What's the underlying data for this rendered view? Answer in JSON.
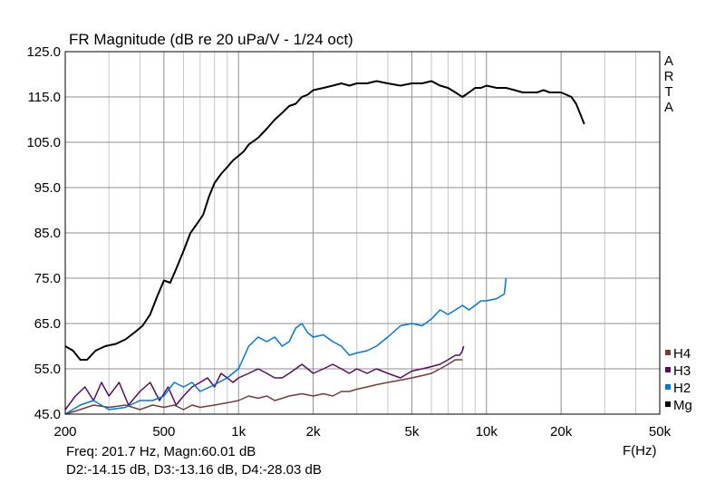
{
  "chart_data": {
    "type": "line",
    "title": "FR Magnitude (dB re 20 uPa/V - 1/24 oct)",
    "xlabel": "F(Hz)",
    "ylabel": "",
    "x_scale": "log",
    "xlim": [
      200,
      50000
    ],
    "ylim": [
      45,
      125
    ],
    "grid": true,
    "brand": "ARTA",
    "brand_letters": [
      "A",
      "R",
      "T",
      "A"
    ],
    "x_ticks": [
      {
        "value": 200,
        "label": "200"
      },
      {
        "value": 500,
        "label": "500"
      },
      {
        "value": 1000,
        "label": "1k"
      },
      {
        "value": 2000,
        "label": "2k"
      },
      {
        "value": 5000,
        "label": "5k"
      },
      {
        "value": 10000,
        "label": "10k"
      },
      {
        "value": 20000,
        "label": "20k"
      },
      {
        "value": 50000,
        "label": "50k"
      }
    ],
    "y_ticks": [
      {
        "value": 125,
        "label": "125.0"
      },
      {
        "value": 115,
        "label": "115.0"
      },
      {
        "value": 105,
        "label": "105.0"
      },
      {
        "value": 95,
        "label": "95.0"
      },
      {
        "value": 85,
        "label": "85.0"
      },
      {
        "value": 75,
        "label": "75.0"
      },
      {
        "value": 65,
        "label": "65.0"
      },
      {
        "value": 55,
        "label": "55.0"
      },
      {
        "value": 45,
        "label": "45.0"
      }
    ],
    "legend_position": "bottom-right",
    "series": [
      {
        "name": "Mg",
        "color": "#000000",
        "points": [
          [
            200,
            60
          ],
          [
            215,
            59
          ],
          [
            230,
            57
          ],
          [
            245,
            57
          ],
          [
            265,
            59
          ],
          [
            290,
            60
          ],
          [
            320,
            60.5
          ],
          [
            350,
            61.5
          ],
          [
            380,
            63
          ],
          [
            410,
            64.5
          ],
          [
            440,
            67
          ],
          [
            470,
            71
          ],
          [
            500,
            74.5
          ],
          [
            530,
            74
          ],
          [
            560,
            77
          ],
          [
            600,
            81
          ],
          [
            640,
            85
          ],
          [
            680,
            87
          ],
          [
            720,
            89
          ],
          [
            760,
            93
          ],
          [
            800,
            96
          ],
          [
            850,
            98
          ],
          [
            900,
            99.5
          ],
          [
            950,
            101
          ],
          [
            1000,
            102
          ],
          [
            1050,
            103
          ],
          [
            1100,
            104.5
          ],
          [
            1200,
            106
          ],
          [
            1300,
            108
          ],
          [
            1400,
            110
          ],
          [
            1500,
            111.5
          ],
          [
            1600,
            113
          ],
          [
            1700,
            113.5
          ],
          [
            1800,
            115
          ],
          [
            1900,
            115.5
          ],
          [
            2000,
            116.5
          ],
          [
            2200,
            117
          ],
          [
            2400,
            117.5
          ],
          [
            2600,
            118
          ],
          [
            2800,
            117.5
          ],
          [
            3000,
            118
          ],
          [
            3300,
            118
          ],
          [
            3600,
            118.5
          ],
          [
            4000,
            118
          ],
          [
            4500,
            117.5
          ],
          [
            5000,
            118
          ],
          [
            5500,
            118
          ],
          [
            6000,
            118.5
          ],
          [
            6500,
            117.5
          ],
          [
            7000,
            117
          ],
          [
            7500,
            116
          ],
          [
            8000,
            115
          ],
          [
            8500,
            116
          ],
          [
            9000,
            117
          ],
          [
            9500,
            117
          ],
          [
            10000,
            117.5
          ],
          [
            11000,
            117
          ],
          [
            12000,
            117
          ],
          [
            13000,
            116.5
          ],
          [
            14000,
            116
          ],
          [
            15000,
            116
          ],
          [
            16000,
            116
          ],
          [
            17000,
            116.5
          ],
          [
            18000,
            116
          ],
          [
            19000,
            116
          ],
          [
            20000,
            116
          ],
          [
            21000,
            115.5
          ],
          [
            22000,
            115
          ],
          [
            23000,
            113.5
          ],
          [
            24000,
            111
          ],
          [
            24800,
            109
          ]
        ]
      },
      {
        "name": "H2",
        "color": "#0078d7",
        "points": [
          [
            200,
            45
          ],
          [
            230,
            47
          ],
          [
            260,
            48
          ],
          [
            300,
            46
          ],
          [
            350,
            46.5
          ],
          [
            400,
            48
          ],
          [
            450,
            48
          ],
          [
            500,
            49
          ],
          [
            550,
            52
          ],
          [
            600,
            51
          ],
          [
            650,
            52
          ],
          [
            700,
            50
          ],
          [
            800,
            51.5
          ],
          [
            900,
            53
          ],
          [
            1000,
            55
          ],
          [
            1100,
            60
          ],
          [
            1200,
            62
          ],
          [
            1300,
            61
          ],
          [
            1400,
            62
          ],
          [
            1500,
            60
          ],
          [
            1600,
            61
          ],
          [
            1700,
            64
          ],
          [
            1800,
            65
          ],
          [
            1900,
            63
          ],
          [
            2000,
            62
          ],
          [
            2200,
            62.5
          ],
          [
            2400,
            61
          ],
          [
            2600,
            60
          ],
          [
            2800,
            58
          ],
          [
            3000,
            58.5
          ],
          [
            3300,
            59
          ],
          [
            3600,
            60
          ],
          [
            4000,
            62
          ],
          [
            4500,
            64.5
          ],
          [
            5000,
            65
          ],
          [
            5500,
            64.5
          ],
          [
            6000,
            66
          ],
          [
            6500,
            68
          ],
          [
            7000,
            67
          ],
          [
            7500,
            68
          ],
          [
            8000,
            69
          ],
          [
            8500,
            68
          ],
          [
            9000,
            69
          ],
          [
            9500,
            70
          ],
          [
            10000,
            70
          ],
          [
            11000,
            70.5
          ],
          [
            11800,
            71.5
          ],
          [
            12000,
            75
          ]
        ]
      },
      {
        "name": "H3",
        "color": "#5c0b63",
        "points": [
          [
            200,
            46
          ],
          [
            220,
            49
          ],
          [
            240,
            51
          ],
          [
            260,
            48
          ],
          [
            280,
            52
          ],
          [
            300,
            49
          ],
          [
            330,
            52
          ],
          [
            360,
            47
          ],
          [
            400,
            50
          ],
          [
            440,
            52
          ],
          [
            480,
            48
          ],
          [
            520,
            51
          ],
          [
            560,
            47
          ],
          [
            600,
            49
          ],
          [
            650,
            51
          ],
          [
            700,
            52
          ],
          [
            750,
            53
          ],
          [
            800,
            51
          ],
          [
            850,
            54
          ],
          [
            900,
            53
          ],
          [
            950,
            52
          ],
          [
            1000,
            53
          ],
          [
            1100,
            54
          ],
          [
            1200,
            55
          ],
          [
            1300,
            54
          ],
          [
            1400,
            53
          ],
          [
            1500,
            53
          ],
          [
            1600,
            54
          ],
          [
            1700,
            55
          ],
          [
            1800,
            56
          ],
          [
            1900,
            55
          ],
          [
            2000,
            54
          ],
          [
            2200,
            55
          ],
          [
            2400,
            56
          ],
          [
            2600,
            55
          ],
          [
            2800,
            54
          ],
          [
            3000,
            55
          ],
          [
            3300,
            54
          ],
          [
            3600,
            55
          ],
          [
            4000,
            54
          ],
          [
            4500,
            53
          ],
          [
            5000,
            54.5
          ],
          [
            5500,
            55
          ],
          [
            6000,
            55.5
          ],
          [
            6500,
            56
          ],
          [
            7000,
            57
          ],
          [
            7500,
            58
          ],
          [
            7800,
            58
          ],
          [
            8000,
            59
          ],
          [
            8100,
            60
          ]
        ]
      },
      {
        "name": "H4",
        "color": "#7a3b32",
        "points": [
          [
            200,
            45
          ],
          [
            230,
            46
          ],
          [
            260,
            47
          ],
          [
            300,
            46.5
          ],
          [
            350,
            47
          ],
          [
            400,
            46
          ],
          [
            450,
            47
          ],
          [
            500,
            46.5
          ],
          [
            550,
            47
          ],
          [
            600,
            46
          ],
          [
            650,
            47
          ],
          [
            700,
            46.5
          ],
          [
            800,
            47
          ],
          [
            900,
            47.5
          ],
          [
            1000,
            48
          ],
          [
            1100,
            49
          ],
          [
            1200,
            48.5
          ],
          [
            1300,
            49
          ],
          [
            1400,
            48
          ],
          [
            1500,
            48.5
          ],
          [
            1600,
            49
          ],
          [
            1800,
            49.5
          ],
          [
            2000,
            49
          ],
          [
            2200,
            49.5
          ],
          [
            2400,
            49
          ],
          [
            2600,
            50
          ],
          [
            2800,
            50
          ],
          [
            3000,
            50.5
          ],
          [
            3300,
            51
          ],
          [
            3600,
            51.5
          ],
          [
            4000,
            52
          ],
          [
            4500,
            52.5
          ],
          [
            5000,
            53
          ],
          [
            5500,
            53.5
          ],
          [
            6000,
            54
          ],
          [
            6500,
            55
          ],
          [
            7000,
            56
          ],
          [
            7500,
            57
          ],
          [
            8000,
            57
          ]
        ]
      }
    ]
  },
  "legend": {
    "items": [
      {
        "name": "H4",
        "color": "#7a3b32"
      },
      {
        "name": "H3",
        "color": "#5c0b63"
      },
      {
        "name": "H2",
        "color": "#0078d7"
      },
      {
        "name": "Mg",
        "color": "#000000"
      }
    ]
  },
  "status": {
    "line1": "Freq: 201.7 Hz, Magn:60.01 dB",
    "line2": "D2:-14.15 dB, D3:-13.16 dB, D4:-28.03 dB"
  }
}
